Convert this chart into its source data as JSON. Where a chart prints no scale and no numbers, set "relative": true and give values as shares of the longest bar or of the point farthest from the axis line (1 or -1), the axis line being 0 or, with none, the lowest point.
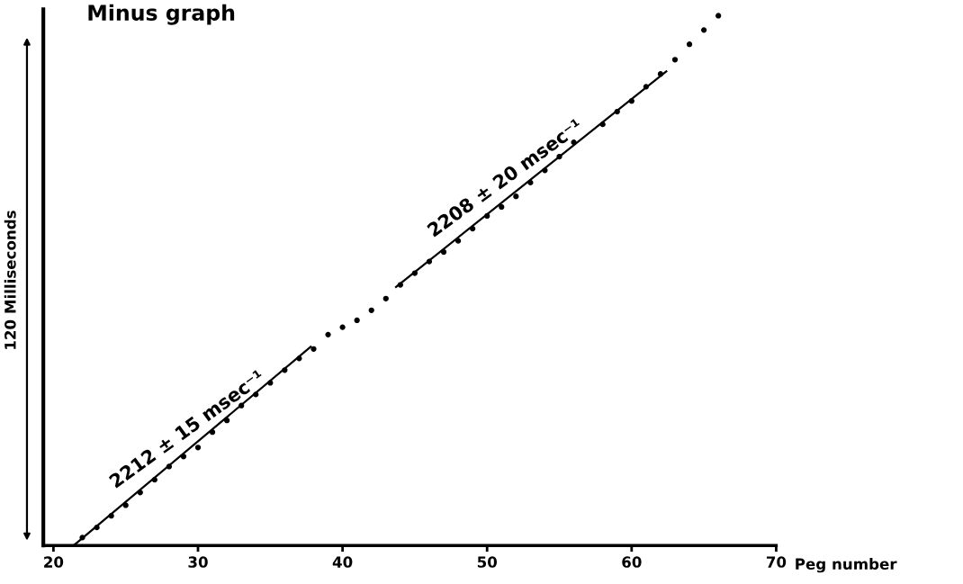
{
  "chart_data": {
    "type": "scatter",
    "title": "Minus graph",
    "xlabel": "Peg number",
    "ylabel": "120 Milliseconds",
    "relative": true,
    "xlim": [
      19.3,
      70
    ],
    "xticks": [
      20,
      30,
      40,
      50,
      60,
      70
    ],
    "grid": false,
    "marker": "circle",
    "series": [
      {
        "color": "#000000",
        "x": [
          22,
          23,
          24,
          25,
          26,
          27,
          28,
          29,
          30,
          31,
          32,
          33,
          34,
          35,
          36,
          37,
          38,
          39,
          40,
          41,
          42,
          43,
          44,
          45,
          46,
          47,
          48,
          49,
          50,
          51,
          52,
          53,
          54,
          55,
          56,
          58,
          59,
          60,
          61,
          62,
          63,
          64,
          65,
          66
        ],
        "values": [
          0.015,
          0.034,
          0.056,
          0.076,
          0.1,
          0.124,
          0.149,
          0.168,
          0.185,
          0.214,
          0.236,
          0.264,
          0.285,
          0.307,
          0.331,
          0.353,
          0.371,
          0.398,
          0.412,
          0.425,
          0.444,
          0.466,
          0.492,
          0.514,
          0.536,
          0.554,
          0.575,
          0.598,
          0.622,
          0.639,
          0.659,
          0.685,
          0.708,
          0.734,
          0.761,
          0.795,
          0.819,
          0.839,
          0.866,
          0.89,
          0.917,
          0.946,
          0.973,
          1.0
        ]
      },
      {
        "type": "line",
        "color": "#000000",
        "marker": "none",
        "line_style": "solid",
        "x": [
          21.4,
          37.8
        ],
        "values": [
          0.0,
          0.375
        ]
      },
      {
        "type": "line",
        "color": "#000000",
        "marker": "none",
        "line_style": "solid",
        "x": [
          43.7,
          62.4
        ],
        "values": [
          0.488,
          0.895
        ]
      }
    ],
    "annotations": [
      {
        "text": "2212 ± 15 msec⁻¹",
        "x": 30,
        "y": 0.185
      },
      {
        "text": "2208 ± 20 msec⁻¹",
        "x": 52,
        "y": 0.659
      }
    ]
  }
}
